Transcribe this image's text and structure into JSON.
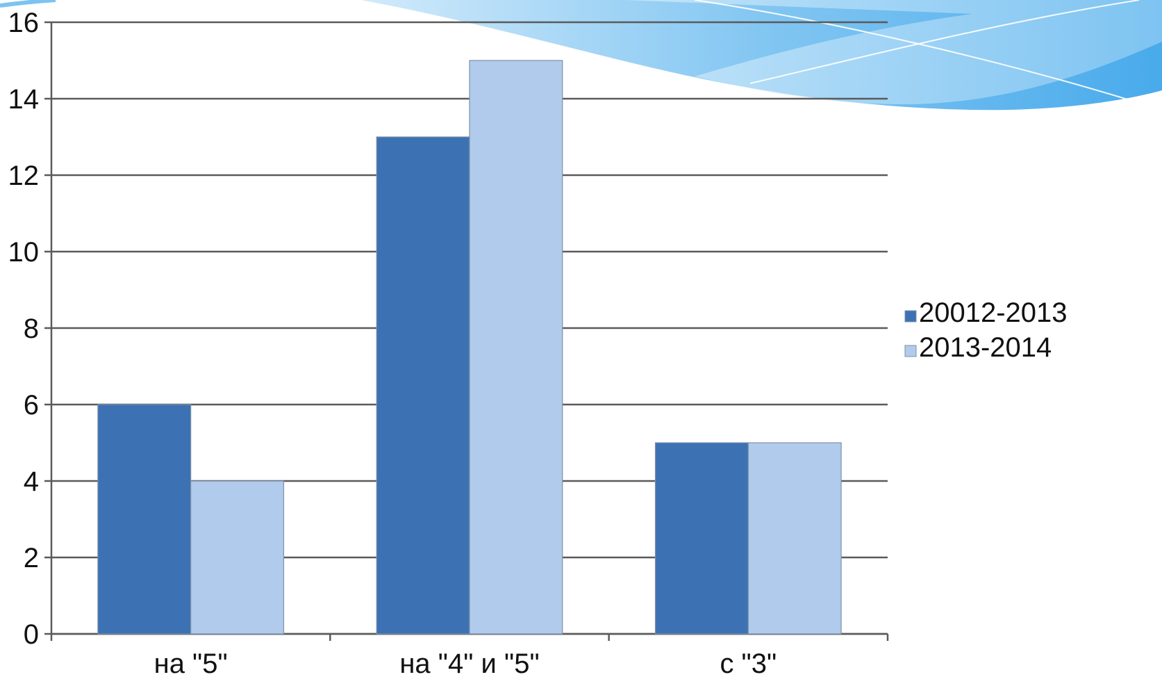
{
  "chart_data": {
    "type": "bar",
    "categories": [
      "на \"5\"",
      "на \"4\" и \"5\"",
      "с \"3\""
    ],
    "series": [
      {
        "name": "20012-2013",
        "values": [
          6,
          13,
          5
        ],
        "color": "#3c72b4"
      },
      {
        "name": "2013-2014",
        "values": [
          4,
          15,
          5
        ],
        "color": "#b0cbec"
      }
    ],
    "ylim": [
      0,
      16
    ],
    "yticks": [
      0,
      2,
      4,
      6,
      8,
      10,
      12,
      14,
      16
    ],
    "grid": true,
    "legend": "right"
  }
}
